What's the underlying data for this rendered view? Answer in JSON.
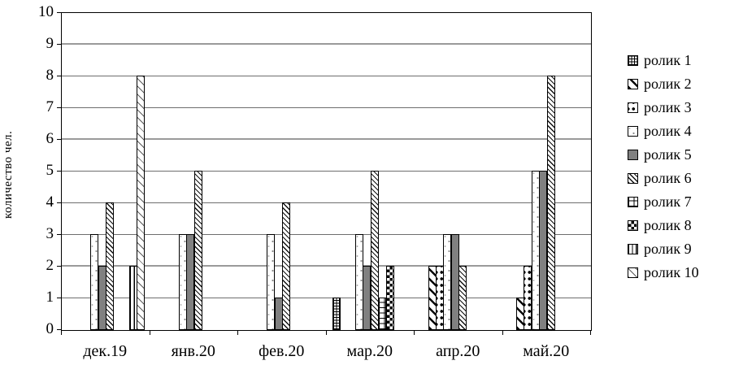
{
  "chart_data": {
    "type": "bar",
    "title": "",
    "xlabel": "",
    "ylabel": "количество чел.",
    "ylim": [
      0,
      10
    ],
    "ytick_step": 1,
    "yticks": [
      0,
      1,
      2,
      3,
      4,
      5,
      6,
      7,
      8,
      9,
      10
    ],
    "grid": true,
    "legend_position": "right",
    "categories": [
      "дек.19",
      "янв.20",
      "фев.20",
      "мар.20",
      "апр.20",
      "май.20"
    ],
    "series": [
      {
        "name": "ролик 1",
        "pattern": "grid-fine",
        "values": [
          0,
          0,
          0,
          1,
          0,
          0
        ]
      },
      {
        "name": "ролик 2",
        "pattern": "diagonal-thick",
        "values": [
          0,
          0,
          0,
          0,
          2,
          1
        ]
      },
      {
        "name": "ролик 3",
        "pattern": "black-dots",
        "values": [
          0,
          0,
          0,
          0,
          2,
          2
        ]
      },
      {
        "name": "ролик 4",
        "pattern": "sparse-dots",
        "values": [
          3,
          3,
          3,
          3,
          3,
          5
        ]
      },
      {
        "name": "ролик 5",
        "pattern": "solid-gray",
        "values": [
          2,
          3,
          1,
          2,
          3,
          5
        ]
      },
      {
        "name": "ролик 6",
        "pattern": "diagonal-dense",
        "values": [
          4,
          5,
          4,
          5,
          2,
          8
        ]
      },
      {
        "name": "ролик 7",
        "pattern": "grid-large",
        "values": [
          0,
          0,
          0,
          1,
          0,
          0
        ]
      },
      {
        "name": "ролик 8",
        "pattern": "checkerboard",
        "values": [
          0,
          0,
          0,
          2,
          0,
          0
        ]
      },
      {
        "name": "ролик 9",
        "pattern": "vertical-lines",
        "values": [
          2,
          0,
          0,
          0,
          0,
          0
        ]
      },
      {
        "name": "ролик 10",
        "pattern": "diagonal-sparse",
        "values": [
          8,
          0,
          0,
          0,
          0,
          0
        ]
      }
    ]
  },
  "colors": {
    "background": "#ffffff",
    "axis": "#000000",
    "grid_line": "#6e6e6e",
    "solid_bar_gray": "#808080"
  }
}
